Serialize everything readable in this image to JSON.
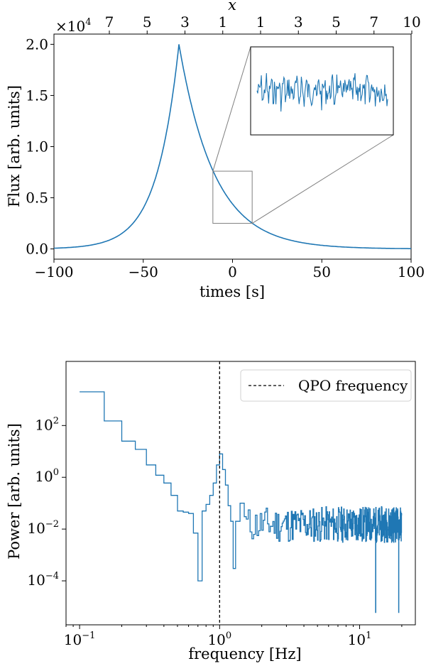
{
  "chart_data": [
    {
      "type": "line",
      "xlabel": "times [s]",
      "ylabel": "Flux [arb. units]",
      "top_xlabel": "x",
      "top_ticks": [
        "7",
        "5",
        "3",
        "1",
        "1",
        "3",
        "5",
        "7",
        "10"
      ],
      "offset_label": "×10",
      "offset_exp": "4",
      "xlim": [
        -100,
        100
      ],
      "ylim": [
        -0.1,
        2.1
      ],
      "xticks": [
        -100,
        -50,
        0,
        50,
        100
      ],
      "xtick_labels": [
        "−100",
        "−50",
        "0",
        "50",
        "100"
      ],
      "yticks": [
        0,
        0.5,
        1,
        1.5,
        2
      ],
      "ytick_labels": [
        "0.0",
        "0.5",
        "1.0",
        "1.5",
        "2.0"
      ],
      "series": [
        {
          "peak_time": -30,
          "peak_flux": 2.0,
          "rise_tau": 12.4,
          "decay_tau": 19.8,
          "color": "#1f77b4"
        }
      ],
      "zoom_box": {
        "x": [
          -11,
          11
        ],
        "y": [
          0.25,
          0.76
        ]
      },
      "inset": "zoomed view of the light curve showing rapid oscillations",
      "grid": false
    },
    {
      "type": "line",
      "xlabel": "frequency [Hz]",
      "ylabel": "Power [arb. units]",
      "xscale": "log",
      "yscale": "log",
      "xlim": [
        0.08,
        25
      ],
      "ylim": [
        2e-06,
        30000
      ],
      "xticks": [
        0.1,
        1,
        10
      ],
      "xtick_base": [
        "10",
        "10",
        "10"
      ],
      "xtick_exp": [
        "−1",
        "0",
        "1"
      ],
      "yticks": [
        0.0001,
        0.01,
        1,
        100
      ],
      "ytick_base": [
        "10",
        "10",
        "10",
        "10"
      ],
      "ytick_exp": [
        "−4",
        "−2",
        "0",
        "2"
      ],
      "vline": {
        "x": 1.0,
        "label": "QPO frequency",
        "style": "dashed",
        "color": "#000000"
      },
      "legend": "top-right",
      "series": [
        {
          "color": "#1f77b4",
          "steps": [
            [
              0.1,
              2000
            ],
            [
              0.15,
              150
            ],
            [
              0.2,
              25
            ],
            [
              0.25,
              12
            ],
            [
              0.3,
              3
            ],
            [
              0.35,
              1.2
            ],
            [
              0.4,
              0.6
            ],
            [
              0.45,
              0.2
            ],
            [
              0.5,
              0.05
            ],
            [
              0.55,
              0.045
            ],
            [
              0.6,
              0.04
            ],
            [
              0.65,
              0.007
            ],
            [
              0.7,
              0.0001
            ],
            [
              0.75,
              0.05
            ],
            [
              0.8,
              0.09
            ],
            [
              0.85,
              0.2
            ],
            [
              0.9,
              0.6
            ],
            [
              0.95,
              3
            ],
            [
              1.0,
              8
            ],
            [
              1.05,
              2
            ],
            [
              1.1,
              0.5
            ],
            [
              1.15,
              0.08
            ],
            [
              1.2,
              0.02
            ],
            [
              1.25,
              0.0003
            ],
            [
              1.3,
              0.02
            ],
            [
              1.4,
              0.1
            ],
            [
              1.5,
              0.03
            ]
          ],
          "noise": {
            "from": 1.5,
            "to": 20,
            "level": 0.015,
            "dips": [
              13,
              19
            ]
          }
        }
      ],
      "grid": false
    }
  ]
}
